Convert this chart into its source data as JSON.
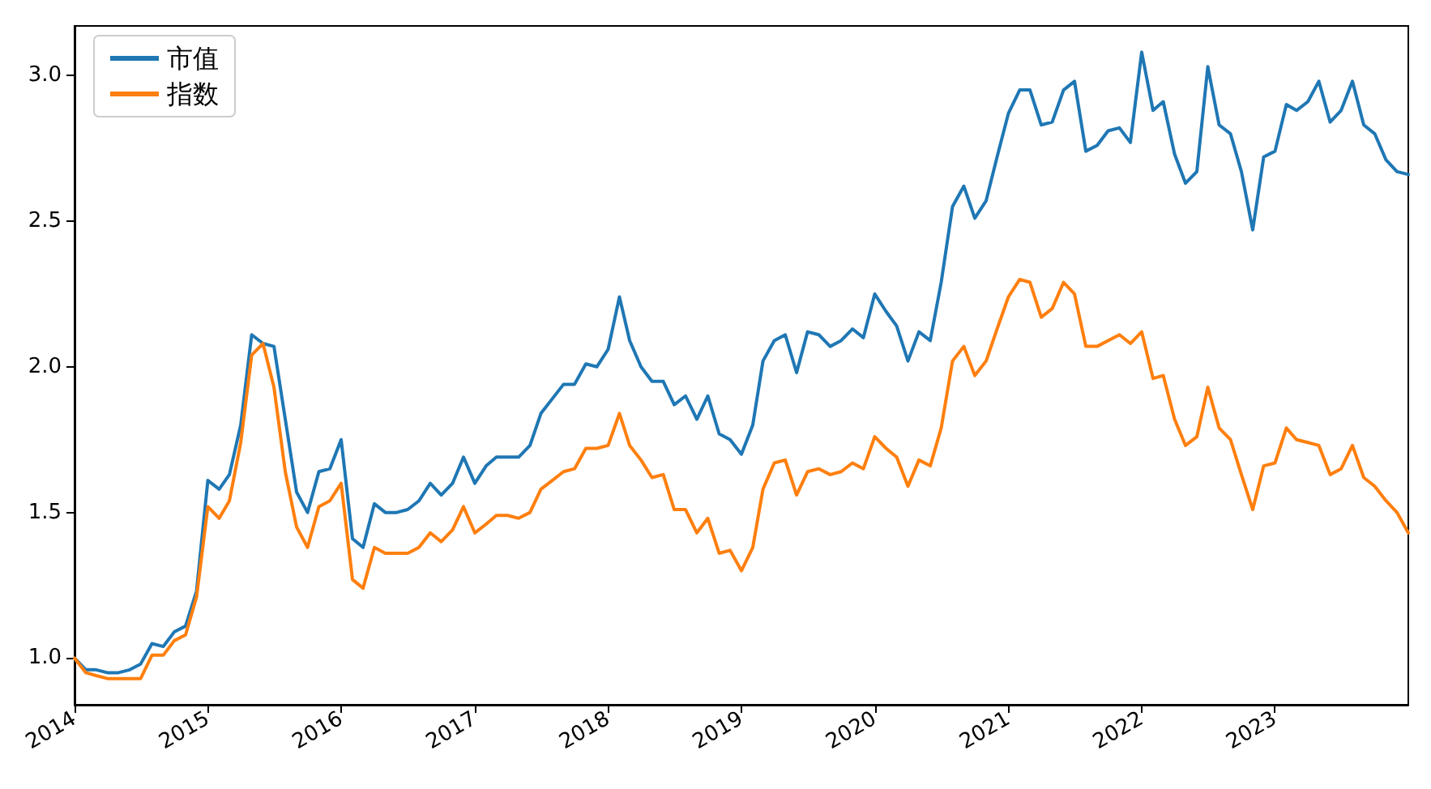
{
  "chart_data": {
    "type": "line",
    "x": [
      "2014-01",
      "2014-02",
      "2014-03",
      "2014-04",
      "2014-05",
      "2014-06",
      "2014-07",
      "2014-08",
      "2014-09",
      "2014-10",
      "2014-11",
      "2014-12",
      "2015-01",
      "2015-02",
      "2015-03",
      "2015-04",
      "2015-05",
      "2015-06",
      "2015-07",
      "2015-08",
      "2015-09",
      "2015-10",
      "2015-11",
      "2015-12",
      "2016-01",
      "2016-02",
      "2016-03",
      "2016-04",
      "2016-05",
      "2016-06",
      "2016-07",
      "2016-08",
      "2016-09",
      "2016-10",
      "2016-11",
      "2016-12",
      "2017-01",
      "2017-02",
      "2017-03",
      "2017-04",
      "2017-05",
      "2017-06",
      "2017-07",
      "2017-08",
      "2017-09",
      "2017-10",
      "2017-11",
      "2017-12",
      "2018-01",
      "2018-02",
      "2018-03",
      "2018-04",
      "2018-05",
      "2018-06",
      "2018-07",
      "2018-08",
      "2018-09",
      "2018-10",
      "2018-11",
      "2018-12",
      "2019-01",
      "2019-02",
      "2019-03",
      "2019-04",
      "2019-05",
      "2019-06",
      "2019-07",
      "2019-08",
      "2019-09",
      "2019-10",
      "2019-11",
      "2019-12",
      "2020-01",
      "2020-02",
      "2020-03",
      "2020-04",
      "2020-05",
      "2020-06",
      "2020-07",
      "2020-08",
      "2020-09",
      "2020-10",
      "2020-11",
      "2020-12",
      "2021-01",
      "2021-02",
      "2021-03",
      "2021-04",
      "2021-05",
      "2021-06",
      "2021-07",
      "2021-08",
      "2021-09",
      "2021-10",
      "2021-11",
      "2021-12",
      "2022-01",
      "2022-02",
      "2022-03",
      "2022-04",
      "2022-05",
      "2022-06",
      "2022-07",
      "2022-08",
      "2022-09",
      "2022-10",
      "2022-11",
      "2022-12",
      "2023-01",
      "2023-02",
      "2023-03",
      "2023-04",
      "2023-05",
      "2023-06",
      "2023-07",
      "2023-08",
      "2023-09",
      "2023-10",
      "2023-11",
      "2023-12",
      "2024-01"
    ],
    "series": [
      {
        "name": "市值",
        "color": "#1f77b4",
        "values": [
          1.0,
          0.96,
          0.96,
          0.95,
          0.95,
          0.96,
          0.98,
          1.05,
          1.04,
          1.09,
          1.11,
          1.23,
          1.61,
          1.58,
          1.63,
          1.8,
          2.11,
          2.08,
          2.07,
          1.82,
          1.57,
          1.5,
          1.64,
          1.65,
          1.75,
          1.41,
          1.38,
          1.53,
          1.5,
          1.5,
          1.51,
          1.54,
          1.6,
          1.56,
          1.6,
          1.69,
          1.6,
          1.66,
          1.69,
          1.69,
          1.69,
          1.73,
          1.84,
          1.89,
          1.94,
          1.94,
          2.01,
          2.0,
          2.06,
          2.24,
          2.09,
          2.0,
          1.95,
          1.95,
          1.87,
          1.9,
          1.82,
          1.9,
          1.77,
          1.75,
          1.7,
          1.8,
          2.02,
          2.09,
          2.11,
          1.98,
          2.12,
          2.11,
          2.07,
          2.09,
          2.13,
          2.1,
          2.25,
          2.19,
          2.14,
          2.02,
          2.12,
          2.09,
          2.29,
          2.55,
          2.62,
          2.51,
          2.57,
          2.72,
          2.87,
          2.95,
          2.95,
          2.83,
          2.84,
          2.95,
          2.98,
          2.74,
          2.76,
          2.81,
          2.82,
          2.77,
          3.08,
          2.88,
          2.91,
          2.73,
          2.63,
          2.67,
          3.03,
          2.83,
          2.8,
          2.67,
          2.47,
          2.72,
          2.74,
          2.9,
          2.88,
          2.91,
          2.98,
          2.84,
          2.88,
          2.98,
          2.83,
          2.8,
          2.71,
          2.67,
          2.66
        ]
      },
      {
        "name": "指数",
        "color": "#ff7f0e",
        "values": [
          1.0,
          0.95,
          0.94,
          0.93,
          0.93,
          0.93,
          0.93,
          1.01,
          1.01,
          1.06,
          1.08,
          1.21,
          1.52,
          1.48,
          1.54,
          1.74,
          2.04,
          2.08,
          1.93,
          1.64,
          1.45,
          1.38,
          1.52,
          1.54,
          1.6,
          1.27,
          1.24,
          1.38,
          1.36,
          1.36,
          1.36,
          1.38,
          1.43,
          1.4,
          1.44,
          1.52,
          1.43,
          1.46,
          1.49,
          1.49,
          1.48,
          1.5,
          1.58,
          1.61,
          1.64,
          1.65,
          1.72,
          1.72,
          1.73,
          1.84,
          1.73,
          1.68,
          1.62,
          1.63,
          1.51,
          1.51,
          1.43,
          1.48,
          1.36,
          1.37,
          1.3,
          1.38,
          1.58,
          1.67,
          1.68,
          1.56,
          1.64,
          1.65,
          1.63,
          1.64,
          1.67,
          1.65,
          1.76,
          1.72,
          1.69,
          1.59,
          1.68,
          1.66,
          1.79,
          2.02,
          2.07,
          1.97,
          2.02,
          2.13,
          2.24,
          2.3,
          2.29,
          2.17,
          2.2,
          2.29,
          2.25,
          2.07,
          2.07,
          2.09,
          2.11,
          2.08,
          2.12,
          1.96,
          1.97,
          1.82,
          1.73,
          1.76,
          1.93,
          1.79,
          1.75,
          1.63,
          1.51,
          1.66,
          1.67,
          1.79,
          1.75,
          1.74,
          1.73,
          1.63,
          1.65,
          1.73,
          1.62,
          1.59,
          1.54,
          1.5,
          1.43
        ]
      }
    ],
    "xlim": [
      "2014-01",
      "2024-01"
    ],
    "xticks": [
      "2014",
      "2015",
      "2016",
      "2017",
      "2018",
      "2019",
      "2020",
      "2021",
      "2022",
      "2023"
    ],
    "ylim": [
      0.84,
      3.17
    ],
    "yticks": [
      {
        "value": 1,
        "label": "1.0"
      },
      {
        "value": 1.5,
        "label": "1.5"
      },
      {
        "value": 2,
        "label": "2.0"
      },
      {
        "value": 2.5,
        "label": "2.5"
      },
      {
        "value": 3,
        "label": "3.0"
      }
    ],
    "legend": "top left",
    "grid": false,
    "marker": "none",
    "line_style": "solid"
  }
}
